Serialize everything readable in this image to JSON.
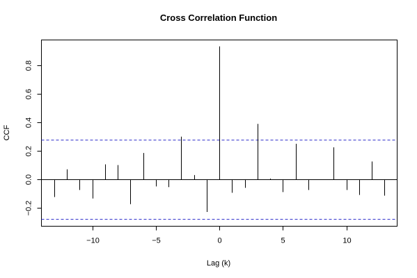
{
  "chart_data": {
    "type": "bar",
    "title": "Cross Correlation Function",
    "xlabel": "Lag (k)",
    "ylabel": "CCF",
    "xlim": [
      -14,
      14
    ],
    "ylim": [
      -0.33,
      0.98
    ],
    "x_ticks": [
      -10,
      -5,
      0,
      5,
      10
    ],
    "x_tick_labels": [
      "−10",
      "−5",
      "0",
      "5",
      "10"
    ],
    "y_ticks": [
      -0.2,
      0.0,
      0.2,
      0.4,
      0.6,
      0.8
    ],
    "y_tick_labels": [
      "−0.2",
      "0.0",
      "0.2",
      "0.4",
      "0.6",
      "0.8"
    ],
    "grid": false,
    "bar_style": "vertical spikes",
    "lags": [
      -13,
      -12,
      -11,
      -10,
      -9,
      -8,
      -7,
      -6,
      -5,
      -4,
      -3,
      -2,
      -1,
      0,
      1,
      2,
      3,
      4,
      5,
      6,
      7,
      8,
      9,
      10,
      11,
      12,
      13
    ],
    "values": [
      -0.125,
      0.07,
      -0.075,
      -0.135,
      0.105,
      0.1,
      -0.175,
      0.185,
      -0.05,
      -0.055,
      0.3,
      0.03,
      -0.23,
      0.935,
      -0.095,
      -0.06,
      0.39,
      0.005,
      -0.09,
      0.25,
      -0.075,
      -0.005,
      0.225,
      -0.075,
      -0.11,
      0.125,
      -0.115
    ],
    "confidence_band": 0.28,
    "colors": {
      "spike": "#000000",
      "zero_line": "#000000",
      "confidence_line": "#3333cc",
      "frame": "#000000"
    }
  }
}
